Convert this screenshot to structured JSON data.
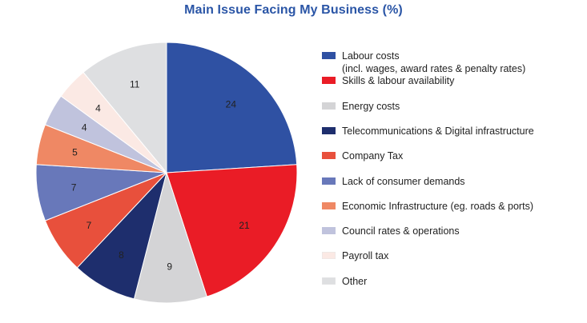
{
  "chart_data": {
    "type": "pie",
    "title": "Main Issue Facing My Business (%)",
    "slices": [
      {
        "label": "Labour costs",
        "label_line2": "(incl. wages, award rates & penalty rates)",
        "value": 24,
        "color": "#2f51a3"
      },
      {
        "label": "Skills & labour availability",
        "value": 21,
        "color": "#ea1c26"
      },
      {
        "label": "Energy costs",
        "value": 9,
        "color": "#d4d4d6"
      },
      {
        "label": "Telecommunications & Digital infrastructure",
        "value": 8,
        "color": "#1e2e6d"
      },
      {
        "label": "Company Tax",
        "value": 7,
        "color": "#e8503c"
      },
      {
        "label": "Lack of consumer demands",
        "value": 7,
        "color": "#6878ba"
      },
      {
        "label": "Economic Infrastructure (eg. roads & ports)",
        "value": 5,
        "color": "#ef8864"
      },
      {
        "label": "Council rates & operations",
        "value": 4,
        "color": "#c0c3dd"
      },
      {
        "label": "Payroll tax",
        "value": 4,
        "color": "#fbe9e4"
      },
      {
        "label": "Other",
        "value": 11,
        "color": "#dedfe1"
      }
    ],
    "legend_position": "right"
  }
}
